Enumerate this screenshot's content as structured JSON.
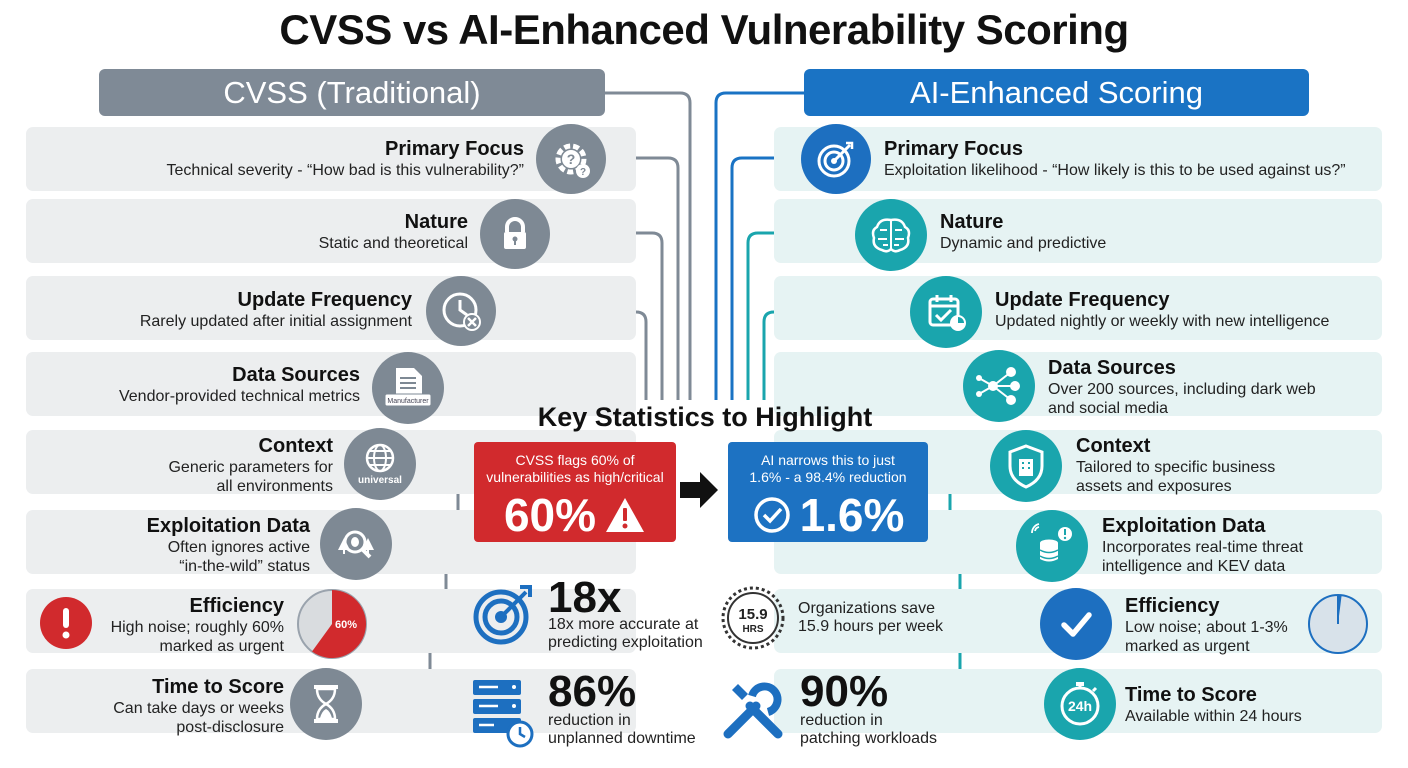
{
  "title": "CVSS vs AI-Enhanced Vulnerability Scoring",
  "left_header": "CVSS (Traditional)",
  "right_header": "AI-Enhanced Scoring",
  "left_rows": [
    {
      "title": "Primary Focus",
      "desc": [
        "Technical severity - “How bad is this vulnerability?”"
      ],
      "icon": "gear-question-icon"
    },
    {
      "title": "Nature",
      "desc": [
        "Static and theoretical"
      ],
      "icon": "padlock-icon"
    },
    {
      "title": "Update Frequency",
      "desc": [
        "Rarely updated after initial assignment"
      ],
      "icon": "clock-x-icon"
    },
    {
      "title": "Data Sources",
      "desc": [
        "Vendor-provided technical metrics"
      ],
      "icon": "document-icon",
      "icon_label": "Manufacturer"
    },
    {
      "title": "Context",
      "desc": [
        "Generic parameters for",
        "all environments"
      ],
      "icon": "globe-icon",
      "icon_label": "universal"
    },
    {
      "title": "Exploitation Data",
      "desc": [
        "Often ignores active",
        "“in-the-wild” status"
      ],
      "icon": "bug-magnifier-icon"
    },
    {
      "title": "Efficiency",
      "desc": [
        "High noise; roughly 60%",
        "marked as urgent"
      ],
      "icon": "pie-60-icon",
      "icon_label": "60%"
    },
    {
      "title": "Time to Score",
      "desc": [
        "Can take days or weeks",
        "post-disclosure"
      ],
      "icon": "hourglass-icon"
    }
  ],
  "right_rows": [
    {
      "title": "Primary Focus",
      "desc": [
        "Exploitation likelihood - “How likely is this to be used against us?”"
      ],
      "icon": "target-icon"
    },
    {
      "title": "Nature",
      "desc": [
        "Dynamic and predictive"
      ],
      "icon": "brain-icon"
    },
    {
      "title": "Update Frequency",
      "desc": [
        "Updated nightly or weekly with new intelligence"
      ],
      "icon": "calendar-check-icon"
    },
    {
      "title": "Data Sources",
      "desc": [
        "Over 200 sources, including dark web",
        "and social media"
      ],
      "icon": "network-icon"
    },
    {
      "title": "Context",
      "desc": [
        "Tailored to specific business",
        "assets and exposures"
      ],
      "icon": "shield-building-icon"
    },
    {
      "title": "Exploitation Data",
      "desc": [
        "Incorporates real-time threat",
        "intelligence and KEV data"
      ],
      "icon": "database-alert-icon"
    },
    {
      "title": "Efficiency",
      "desc": [
        "Low noise; about 1-3%",
        "marked as urgent"
      ],
      "icon": "checkmark-icon"
    },
    {
      "title": "Time to Score",
      "desc": [
        "Available within 24 hours"
      ],
      "icon": "stopwatch-24h-icon",
      "icon_label": "24h"
    }
  ],
  "key_stats_title": "Key Statistics to Highlight",
  "cvss_stat": {
    "caption": [
      "CVSS flags 60% of",
      "vulnerabilities as high/critical"
    ],
    "value": "60%"
  },
  "ai_stat": {
    "caption": [
      "AI narrows this to just",
      "1.6% - a 98.4% reduction"
    ],
    "value": "1.6%"
  },
  "stats": [
    {
      "value": "18x",
      "desc": [
        "18x more accurate at",
        "predicting exploitation"
      ],
      "icon": "target-icon"
    },
    {
      "value": "",
      "desc": [
        "Organizations save",
        "15.9 hours per week"
      ],
      "icon": "clock-hours-icon",
      "icon_value": "15.9",
      "icon_unit": "HRS"
    },
    {
      "value": "86%",
      "desc": [
        "reduction in",
        "unplanned downtime"
      ],
      "icon": "server-clock-icon"
    },
    {
      "value": "90%",
      "desc": [
        "reduction in",
        "patching workloads"
      ],
      "icon": "wrench-icon"
    }
  ],
  "colors": {
    "cvss_gray": "#7f8a96",
    "ai_blue": "#1a73c4",
    "ai_teal": "#1aa5ad",
    "alert_red": "#d12a2d",
    "left_row_bg": "#eceeef",
    "right_row_bg": "#e6f3f3"
  },
  "efficiency": {
    "cvss_urgent_fraction": 0.6,
    "ai_urgent_fraction": 0.02
  }
}
